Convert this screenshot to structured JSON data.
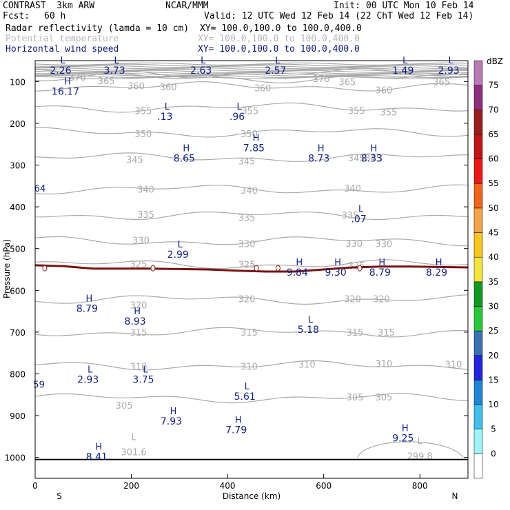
{
  "header": {
    "model": "CONTRAST  3km ARW",
    "org": "NCAR/MMM",
    "init": "Init: 00 UTC Mon 10 Feb 14",
    "fcst_label": "Fcst:",
    "fcst_value": "60 h",
    "valid": "Valid: 12 UTC Wed 12 Feb 14 (22 ChT Wed 12 Feb 14)",
    "fields": [
      {
        "name": "Radar reflectivity (lamda = 10 cm)",
        "xy": "XY= 100.0,100.0 to 100.0,400.0",
        "style": "black"
      },
      {
        "name": "Potential temperature",
        "xy": "XY= 100.0,100.0 to 100.0,400.0",
        "style": "faint"
      },
      {
        "name": "Horizontal wind speed",
        "xy": "XY= 100.0,100.0 to 100.0,400.0",
        "style": "navy"
      }
    ]
  },
  "colors": {
    "theta": "#a9a9a9",
    "wind": "#10208a",
    "tropopause": "#7a1010",
    "ground": "#000000"
  },
  "chart_data": {
    "type": "cross-section",
    "xlabel": "Distance (km)",
    "ylabel": "Pressure (hPa)",
    "xlim": [
      0,
      900
    ],
    "ylim": [
      1050,
      50
    ],
    "xticks": [
      0,
      200,
      400,
      600,
      800
    ],
    "yticks": [
      100,
      200,
      300,
      400,
      500,
      600,
      700,
      800,
      900,
      1000
    ],
    "x_end_labels": {
      "left": "S",
      "right": "N"
    },
    "isentropes": [
      {
        "k": 370,
        "p": 80
      },
      {
        "k": 365,
        "p": 92
      },
      {
        "k": 360,
        "p": 112
      },
      {
        "k": 355,
        "p": 162
      },
      {
        "k": 350,
        "p": 222
      },
      {
        "k": 345,
        "p": 282
      },
      {
        "k": 340,
        "p": 358
      },
      {
        "k": 335,
        "p": 420
      },
      {
        "k": 330,
        "p": 482
      },
      {
        "k": 325,
        "p": 538
      },
      {
        "k": 320,
        "p": 622
      },
      {
        "k": 315,
        "p": 700
      },
      {
        "k": 310,
        "p": 780
      },
      {
        "k": 305,
        "p": 858
      }
    ],
    "theta_labels": [
      {
        "text": "370",
        "x": 88,
        "p": 90
      },
      {
        "text": "365",
        "x": 148,
        "p": 98
      },
      {
        "text": "360",
        "x": 210,
        "p": 110
      },
      {
        "text": "360",
        "x": 277,
        "p": 113
      },
      {
        "text": "360",
        "x": 473,
        "p": 115
      },
      {
        "text": "370",
        "x": 595,
        "p": 93
      },
      {
        "text": "365",
        "x": 649,
        "p": 100
      },
      {
        "text": "360",
        "x": 725,
        "p": 120
      },
      {
        "text": "365",
        "x": 845,
        "p": 100
      },
      {
        "text": "355",
        "x": 225,
        "p": 170
      },
      {
        "text": "355",
        "x": 447,
        "p": 170
      },
      {
        "text": "355",
        "x": 668,
        "p": 170
      },
      {
        "text": "355",
        "x": 735,
        "p": 173
      },
      {
        "text": "350",
        "x": 225,
        "p": 225
      },
      {
        "text": "350",
        "x": 445,
        "p": 225
      },
      {
        "text": "345",
        "x": 207,
        "p": 287
      },
      {
        "text": "345",
        "x": 440,
        "p": 290
      },
      {
        "text": "345",
        "x": 668,
        "p": 283
      },
      {
        "text": "345",
        "x": 703,
        "p": 283
      },
      {
        "text": "340",
        "x": 230,
        "p": 358
      },
      {
        "text": "340",
        "x": 445,
        "p": 360
      },
      {
        "text": "340",
        "x": 660,
        "p": 355
      },
      {
        "text": "335",
        "x": 230,
        "p": 418
      },
      {
        "text": "335",
        "x": 440,
        "p": 425
      },
      {
        "text": "335",
        "x": 655,
        "p": 420
      },
      {
        "text": "330",
        "x": 220,
        "p": 480
      },
      {
        "text": "330",
        "x": 440,
        "p": 488
      },
      {
        "text": "330",
        "x": 663,
        "p": 487
      },
      {
        "text": "330",
        "x": 725,
        "p": 488
      },
      {
        "text": "325",
        "x": 215,
        "p": 537
      },
      {
        "text": "325",
        "x": 440,
        "p": 538
      },
      {
        "text": "325",
        "x": 668,
        "p": 540
      },
      {
        "text": "320",
        "x": 215,
        "p": 635
      },
      {
        "text": "320",
        "x": 440,
        "p": 620
      },
      {
        "text": "320",
        "x": 660,
        "p": 620
      },
      {
        "text": "320",
        "x": 720,
        "p": 620
      },
      {
        "text": "315",
        "x": 215,
        "p": 700
      },
      {
        "text": "315",
        "x": 445,
        "p": 700
      },
      {
        "text": "315",
        "x": 665,
        "p": 700
      },
      {
        "text": "315",
        "x": 730,
        "p": 700
      },
      {
        "text": "310",
        "x": 215,
        "p": 782
      },
      {
        "text": "310",
        "x": 445,
        "p": 782
      },
      {
        "text": "310",
        "x": 565,
        "p": 777
      },
      {
        "text": "310",
        "x": 725,
        "p": 775
      },
      {
        "text": "310",
        "x": 870,
        "p": 777
      },
      {
        "text": "305",
        "x": 185,
        "p": 875
      },
      {
        "text": "305",
        "x": 665,
        "p": 855
      },
      {
        "text": "305",
        "x": 725,
        "p": 855
      }
    ],
    "wind_extrema": [
      {
        "type": "L",
        "value": "2.26",
        "x": 53,
        "p": 80
      },
      {
        "type": "L",
        "value": "3.73",
        "x": 165,
        "p": 80
      },
      {
        "type": "L",
        "value": "2.63",
        "x": 345,
        "p": 80
      },
      {
        "type": "L",
        "value": "2.57",
        "x": 500,
        "p": 80
      },
      {
        "type": "L",
        "value": "1.49",
        "x": 765,
        "p": 80
      },
      {
        "type": "L",
        "value": "2.93",
        "x": 860,
        "p": 80
      },
      {
        "type": "H",
        "value": "16.17",
        "x": 63,
        "p": 130
      },
      {
        "type": "L",
        "value": ".13",
        "x": 270,
        "p": 190
      },
      {
        "type": "L",
        "value": ".96",
        "x": 420,
        "p": 190
      },
      {
        "type": "H",
        "value": "7.85",
        "x": 455,
        "p": 265
      },
      {
        "type": "H",
        "value": "8.65",
        "x": 310,
        "p": 290
      },
      {
        "type": "H",
        "value": "8.73",
        "x": 590,
        "p": 290
      },
      {
        "type": "H",
        "value": "8.33",
        "x": 700,
        "p": 290
      },
      {
        "type": "L",
        "value": ".07",
        "x": 673,
        "p": 435
      },
      {
        "type": "L",
        "value": "2.99",
        "x": 297,
        "p": 520
      },
      {
        "type": "H",
        "value": "9.84",
        "x": 545,
        "p": 563
      },
      {
        "type": "H",
        "value": "9.30",
        "x": 625,
        "p": 563
      },
      {
        "type": "H",
        "value": "8.79",
        "x": 717,
        "p": 563
      },
      {
        "type": "H",
        "value": "8.29",
        "x": 835,
        "p": 563
      },
      {
        "type": "H",
        "value": "8.79",
        "x": 108,
        "p": 650
      },
      {
        "type": "H",
        "value": "8.93",
        "x": 208,
        "p": 680
      },
      {
        "type": "L",
        "value": "5.18",
        "x": 568,
        "p": 700
      },
      {
        "type": "L",
        "value": "2.93",
        "x": 110,
        "p": 820
      },
      {
        "type": "L",
        "value": "3.75",
        "x": 225,
        "p": 820
      },
      {
        "type": "L",
        "value": "5.61",
        "x": 436,
        "p": 860
      },
      {
        "type": "H",
        "value": "7.93",
        "x": 283,
        "p": 920
      },
      {
        "type": "H",
        "value": "7.79",
        "x": 418,
        "p": 940
      },
      {
        "type": "H",
        "value": "9.25",
        "x": 765,
        "p": 960
      },
      {
        "type": "H",
        "value": "8.41",
        "x": 128,
        "p": 1005
      }
    ],
    "edge_labels": [
      {
        "text": "64",
        "x": 10,
        "p": 355
      },
      {
        "text": "59",
        "x": 8,
        "p": 825
      }
    ],
    "theta_extrema": [
      {
        "type": "L",
        "value": "301.6",
        "x": 205,
        "p": 995
      },
      {
        "type": "L",
        "value": "299.8",
        "x": 800,
        "p": 1005
      }
    ],
    "tropopause_line": [
      {
        "x": 0,
        "p": 540
      },
      {
        "x": 60,
        "p": 542
      },
      {
        "x": 120,
        "p": 548
      },
      {
        "x": 180,
        "p": 548
      },
      {
        "x": 240,
        "p": 548
      },
      {
        "x": 300,
        "p": 549
      },
      {
        "x": 360,
        "p": 550
      },
      {
        "x": 420,
        "p": 553
      },
      {
        "x": 480,
        "p": 555
      },
      {
        "x": 540,
        "p": 555
      },
      {
        "x": 600,
        "p": 550
      },
      {
        "x": 660,
        "p": 545
      },
      {
        "x": 720,
        "p": 543
      },
      {
        "x": 780,
        "p": 543
      },
      {
        "x": 840,
        "p": 544
      },
      {
        "x": 900,
        "p": 545
      }
    ],
    "surface_pressure": 1005,
    "colorbar": {
      "unit": "dBZ",
      "levels": [
        0,
        5,
        10,
        15,
        20,
        25,
        30,
        35,
        40,
        45,
        50,
        55,
        60,
        65,
        70,
        75
      ],
      "colors": [
        "#ffffff",
        "#9ff5f5",
        "#3fbfee",
        "#1e84d6",
        "#2323e0",
        "#3b71b4",
        "#27c837",
        "#0f9a20",
        "#f3e53a",
        "#f8c81c",
        "#f4a346",
        "#f36318",
        "#f21515",
        "#c21414",
        "#9b1e1e",
        "#8e2f7f",
        "#b97ab6"
      ]
    }
  }
}
